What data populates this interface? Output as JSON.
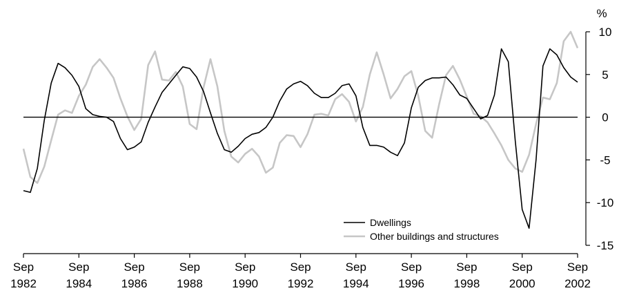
{
  "chart_data": {
    "type": "line",
    "title": "",
    "xlabel": "",
    "ylabel": "%",
    "xlim": [
      1982.667,
      2002.667
    ],
    "ylim": [
      -15,
      10
    ],
    "yticks": [
      10,
      5,
      0,
      -5,
      -10,
      -15
    ],
    "xticks": [
      {
        "x": 1982.667,
        "line1": "Sep",
        "line2": "1982"
      },
      {
        "x": 1984.667,
        "line1": "Sep",
        "line2": "1984"
      },
      {
        "x": 1986.667,
        "line1": "Sep",
        "line2": "1986"
      },
      {
        "x": 1988.667,
        "line1": "Sep",
        "line2": "1988"
      },
      {
        "x": 1990.667,
        "line1": "Sep",
        "line2": "1990"
      },
      {
        "x": 1992.667,
        "line1": "Sep",
        "line2": "1992"
      },
      {
        "x": 1994.667,
        "line1": "Sep",
        "line2": "1994"
      },
      {
        "x": 1996.667,
        "line1": "Sep",
        "line2": "1996"
      },
      {
        "x": 1998.667,
        "line1": "Sep",
        "line2": "1998"
      },
      {
        "x": 2000.667,
        "line1": "Sep",
        "line2": "2000"
      },
      {
        "x": 2002.667,
        "line1": "Sep",
        "line2": "2002"
      }
    ],
    "zero_line": true,
    "grid": false,
    "legend_position": "bottom-right",
    "series": [
      {
        "name": "Dwellings",
        "color": "#000000",
        "points": [
          [
            1982.667,
            -8.6
          ],
          [
            1982.917,
            -8.8
          ],
          [
            1983.167,
            -6.0
          ],
          [
            1983.417,
            -0.4
          ],
          [
            1983.667,
            4.0
          ],
          [
            1983.917,
            6.3
          ],
          [
            1984.167,
            5.8
          ],
          [
            1984.417,
            4.9
          ],
          [
            1984.667,
            3.6
          ],
          [
            1984.917,
            1.0
          ],
          [
            1985.167,
            0.3
          ],
          [
            1985.417,
            0.1
          ],
          [
            1985.667,
            0.0
          ],
          [
            1985.917,
            -0.5
          ],
          [
            1986.167,
            -2.5
          ],
          [
            1986.417,
            -3.8
          ],
          [
            1986.667,
            -3.5
          ],
          [
            1986.917,
            -2.9
          ],
          [
            1987.167,
            -0.6
          ],
          [
            1987.417,
            1.2
          ],
          [
            1987.667,
            2.9
          ],
          [
            1987.917,
            3.9
          ],
          [
            1988.167,
            4.9
          ],
          [
            1988.417,
            5.9
          ],
          [
            1988.667,
            5.7
          ],
          [
            1988.917,
            4.7
          ],
          [
            1989.167,
            3.0
          ],
          [
            1989.417,
            0.5
          ],
          [
            1989.667,
            -1.9
          ],
          [
            1989.917,
            -3.8
          ],
          [
            1990.167,
            -4.1
          ],
          [
            1990.417,
            -3.4
          ],
          [
            1990.667,
            -2.5
          ],
          [
            1990.917,
            -2.0
          ],
          [
            1991.167,
            -1.8
          ],
          [
            1991.417,
            -1.2
          ],
          [
            1991.667,
            0.0
          ],
          [
            1991.917,
            1.9
          ],
          [
            1992.167,
            3.3
          ],
          [
            1992.417,
            3.9
          ],
          [
            1992.667,
            4.2
          ],
          [
            1992.917,
            3.7
          ],
          [
            1993.167,
            2.8
          ],
          [
            1993.417,
            2.3
          ],
          [
            1993.667,
            2.3
          ],
          [
            1993.917,
            2.8
          ],
          [
            1994.167,
            3.7
          ],
          [
            1994.417,
            3.9
          ],
          [
            1994.667,
            2.5
          ],
          [
            1994.917,
            -1.2
          ],
          [
            1995.167,
            -3.3
          ],
          [
            1995.417,
            -3.3
          ],
          [
            1995.667,
            -3.5
          ],
          [
            1995.917,
            -4.1
          ],
          [
            1996.167,
            -4.5
          ],
          [
            1996.417,
            -3.0
          ],
          [
            1996.667,
            1.1
          ],
          [
            1996.917,
            3.5
          ],
          [
            1997.167,
            4.3
          ],
          [
            1997.417,
            4.6
          ],
          [
            1997.667,
            4.6
          ],
          [
            1997.917,
            4.7
          ],
          [
            1998.167,
            3.8
          ],
          [
            1998.417,
            2.6
          ],
          [
            1998.667,
            2.2
          ],
          [
            1998.917,
            1.0
          ],
          [
            1999.167,
            -0.2
          ],
          [
            1999.417,
            0.2
          ],
          [
            1999.667,
            2.6
          ],
          [
            1999.917,
            8.0
          ],
          [
            2000.167,
            6.5
          ],
          [
            2000.417,
            -2.8
          ],
          [
            2000.667,
            -10.8
          ],
          [
            2000.917,
            -13.0
          ],
          [
            2001.167,
            -5.0
          ],
          [
            2001.417,
            6.0
          ],
          [
            2001.667,
            8.0
          ],
          [
            2001.917,
            7.3
          ],
          [
            2002.167,
            5.8
          ],
          [
            2002.417,
            4.7
          ],
          [
            2002.667,
            4.1
          ]
        ]
      },
      {
        "name": "Other buildings and structures",
        "color": "#c6c6c6",
        "points": [
          [
            1982.667,
            -3.7
          ],
          [
            1982.917,
            -7.0
          ],
          [
            1983.167,
            -7.7
          ],
          [
            1983.417,
            -5.8
          ],
          [
            1983.667,
            -2.7
          ],
          [
            1983.917,
            0.3
          ],
          [
            1984.167,
            0.8
          ],
          [
            1984.417,
            0.5
          ],
          [
            1984.667,
            2.5
          ],
          [
            1984.917,
            3.8
          ],
          [
            1985.167,
            5.9
          ],
          [
            1985.417,
            6.8
          ],
          [
            1985.667,
            5.8
          ],
          [
            1985.917,
            4.6
          ],
          [
            1986.167,
            2.2
          ],
          [
            1986.417,
            0.1
          ],
          [
            1986.667,
            -1.5
          ],
          [
            1986.917,
            -0.2
          ],
          [
            1987.167,
            6.1
          ],
          [
            1987.417,
            7.7
          ],
          [
            1987.667,
            4.4
          ],
          [
            1987.917,
            4.3
          ],
          [
            1988.167,
            5.3
          ],
          [
            1988.417,
            3.6
          ],
          [
            1988.667,
            -0.8
          ],
          [
            1988.917,
            -1.4
          ],
          [
            1989.167,
            3.5
          ],
          [
            1989.417,
            6.8
          ],
          [
            1989.667,
            3.6
          ],
          [
            1989.917,
            -1.6
          ],
          [
            1990.167,
            -4.6
          ],
          [
            1990.417,
            -5.3
          ],
          [
            1990.667,
            -4.3
          ],
          [
            1990.917,
            -3.7
          ],
          [
            1991.167,
            -4.6
          ],
          [
            1991.417,
            -6.5
          ],
          [
            1991.667,
            -5.9
          ],
          [
            1991.917,
            -3.0
          ],
          [
            1992.167,
            -2.1
          ],
          [
            1992.417,
            -2.2
          ],
          [
            1992.667,
            -3.5
          ],
          [
            1992.917,
            -2.0
          ],
          [
            1993.167,
            0.3
          ],
          [
            1993.417,
            0.4
          ],
          [
            1993.667,
            0.2
          ],
          [
            1993.917,
            2.1
          ],
          [
            1994.167,
            2.7
          ],
          [
            1994.417,
            1.8
          ],
          [
            1994.667,
            -0.5
          ],
          [
            1994.917,
            1.2
          ],
          [
            1995.167,
            5.0
          ],
          [
            1995.417,
            7.6
          ],
          [
            1995.667,
            5.0
          ],
          [
            1995.917,
            2.2
          ],
          [
            1996.167,
            3.3
          ],
          [
            1996.417,
            4.8
          ],
          [
            1996.667,
            5.4
          ],
          [
            1996.917,
            2.5
          ],
          [
            1997.167,
            -1.6
          ],
          [
            1997.417,
            -2.4
          ],
          [
            1997.667,
            1.5
          ],
          [
            1997.917,
            4.9
          ],
          [
            1998.167,
            6.0
          ],
          [
            1998.417,
            4.4
          ],
          [
            1998.667,
            2.4
          ],
          [
            1998.917,
            0.4
          ],
          [
            1999.167,
            0.1
          ],
          [
            1999.417,
            -0.6
          ],
          [
            1999.667,
            -1.9
          ],
          [
            1999.917,
            -3.3
          ],
          [
            2000.167,
            -5.0
          ],
          [
            2000.417,
            -6.0
          ],
          [
            2000.667,
            -6.4
          ],
          [
            2000.917,
            -4.4
          ],
          [
            2001.167,
            -0.8
          ],
          [
            2001.417,
            2.3
          ],
          [
            2001.667,
            2.1
          ],
          [
            2001.917,
            4.0
          ],
          [
            2002.167,
            8.9
          ],
          [
            2002.417,
            10.0
          ],
          [
            2002.667,
            8.1
          ]
        ]
      }
    ]
  }
}
